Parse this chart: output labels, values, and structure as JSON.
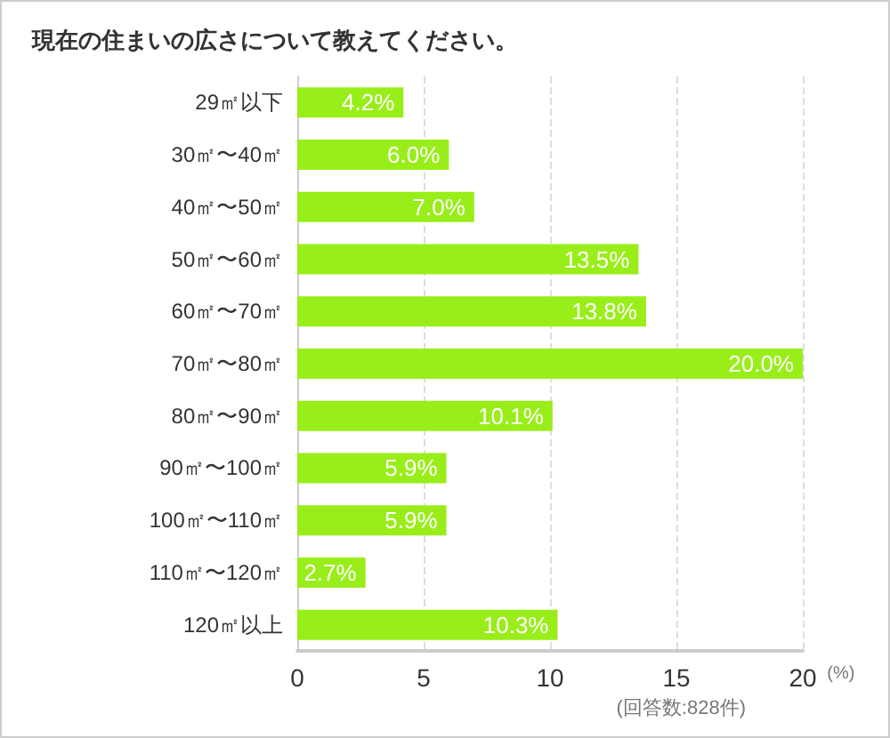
{
  "chart_data": {
    "type": "bar",
    "orientation": "horizontal",
    "title": "現在の住まいの広さについて教えてください。",
    "xlabel": "(%)",
    "categories": [
      "29㎡以下",
      "30㎡〜40㎡",
      "40㎡〜50㎡",
      "50㎡〜60㎡",
      "60㎡〜70㎡",
      "70㎡〜80㎡",
      "80㎡〜90㎡",
      "90㎡〜100㎡",
      "100㎡〜110㎡",
      "110㎡〜120㎡",
      "120㎡以上"
    ],
    "values": [
      4.2,
      6.0,
      7.0,
      13.5,
      13.8,
      20.0,
      10.1,
      5.9,
      5.9,
      2.7,
      10.3
    ],
    "value_labels": [
      "4.2%",
      "6.0%",
      "7.0%",
      "13.5%",
      "13.8%",
      "20.0%",
      "10.1%",
      "5.9%",
      "5.9%",
      "2.7%",
      "10.3%"
    ],
    "color": "#99ee1a",
    "xlim": [
      0,
      20
    ],
    "xticks": [
      0,
      5,
      10,
      15,
      20
    ],
    "grid": "x",
    "annotations": [
      "(回答数:828件)"
    ]
  }
}
